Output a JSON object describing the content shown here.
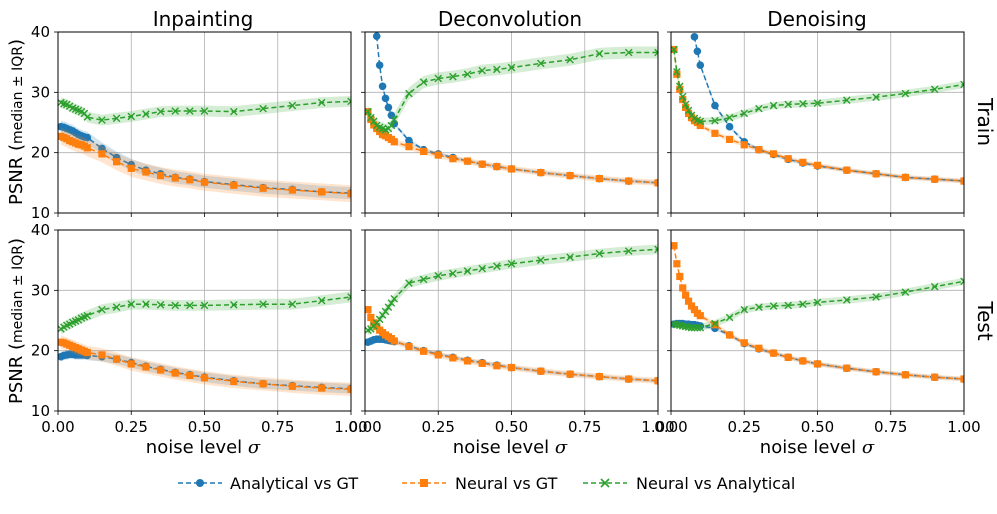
{
  "chart_data": {
    "type": "line",
    "columns": [
      "Inpainting",
      "Deconvolution",
      "Denoising"
    ],
    "rows": [
      "Train",
      "Test"
    ],
    "ylabel_main": "PSNR (",
    "ylabel_small": "median ± IQR",
    "ylabel_close": ")",
    "xlabel_text": "noise level ",
    "xlabel_symbol": "σ",
    "xlim": [
      0.0,
      1.0
    ],
    "ylim": [
      10,
      40
    ],
    "x_ticks": [
      "0.00",
      "0.25",
      "0.50",
      "0.75",
      "1.00"
    ],
    "y_ticks": [
      "10",
      "20",
      "30",
      "40"
    ],
    "grid": true,
    "legend_position": "bottom-center",
    "series_meta": [
      {
        "name": "Analytical vs GT",
        "color": "#1f77b4",
        "marker": "circle"
      },
      {
        "name": "Neural vs GT",
        "color": "#ff7f0e",
        "marker": "square"
      },
      {
        "name": "Neural vs Analytical",
        "color": "#2ca02c",
        "marker": "x"
      }
    ],
    "x": [
      0.01,
      0.02,
      0.03,
      0.04,
      0.05,
      0.06,
      0.07,
      0.08,
      0.09,
      0.1,
      0.15,
      0.2,
      0.25,
      0.3,
      0.35,
      0.4,
      0.45,
      0.5,
      0.6,
      0.7,
      0.8,
      0.9,
      1.0
    ],
    "panels": [
      {
        "row": "Train",
        "column": "Inpainting",
        "series": [
          {
            "name": "Analytical vs GT",
            "values": [
              24.3,
              24.2,
              24.0,
              23.8,
              23.6,
              23.3,
              23.0,
              22.8,
              22.6,
              22.5,
              20.7,
              19.2,
              18.0,
              17.1,
              16.5,
              15.9,
              15.6,
              15.2,
              14.7,
              14.2,
              13.9,
              13.5,
              13.3
            ],
            "spread": 1.0
          },
          {
            "name": "Neural vs GT",
            "values": [
              22.7,
              22.5,
              22.3,
              22.0,
              21.8,
              21.6,
              21.4,
              21.3,
              21.1,
              20.8,
              19.8,
              18.5,
              17.4,
              16.8,
              16.2,
              15.8,
              15.5,
              15.1,
              14.6,
              14.1,
              13.8,
              13.5,
              13.2
            ],
            "spread": 1.4
          },
          {
            "name": "Neural vs Analytical",
            "values": [
              28.3,
              28.1,
              28.0,
              27.7,
              27.4,
              27.2,
              27.0,
              26.8,
              26.5,
              25.9,
              25.4,
              25.7,
              26.0,
              26.4,
              26.8,
              26.9,
              26.9,
              26.9,
              26.8,
              27.3,
              27.8,
              28.3,
              28.5
            ],
            "spread": 0.9
          }
        ]
      },
      {
        "row": "Train",
        "column": "Deconvolution",
        "series": [
          {
            "name": "Analytical vs GT",
            "values": [
              null,
              null,
              null,
              39.3,
              34.5,
              31.0,
              29.0,
              27.5,
              26.2,
              24.8,
              22.0,
              20.5,
              19.8,
              19.2,
              18.6,
              18.1,
              17.7,
              17.3,
              16.7,
              16.2,
              15.7,
              15.3,
              15.0
            ],
            "spread": 0.3
          },
          {
            "name": "Neural vs GT",
            "values": [
              26.8,
              25.5,
              24.6,
              24.0,
              23.5,
              23.0,
              22.8,
              22.5,
              22.2,
              21.8,
              21.0,
              20.2,
              19.6,
              19.0,
              18.6,
              18.1,
              17.7,
              17.3,
              16.7,
              16.2,
              15.7,
              15.3,
              15.0
            ],
            "spread": 0.5
          },
          {
            "name": "Neural vs Analytical",
            "values": [
              26.8,
              25.8,
              25.2,
              24.5,
              24.2,
              24.0,
              23.8,
              24.0,
              24.5,
              25.5,
              29.8,
              31.7,
              32.3,
              32.6,
              33.0,
              33.6,
              33.8,
              34.1,
              34.8,
              35.4,
              36.4,
              36.6,
              36.6
            ],
            "spread": 1.0
          }
        ]
      },
      {
        "row": "Train",
        "column": "Denoising",
        "series": [
          {
            "name": "Analytical vs GT",
            "values": [
              null,
              null,
              null,
              null,
              null,
              null,
              null,
              39.2,
              36.8,
              34.5,
              27.8,
              24.3,
              21.8,
              20.5,
              19.7,
              18.9,
              18.3,
              17.8,
              17.1,
              16.5,
              15.9,
              15.6,
              15.3
            ],
            "spread": 0.3
          },
          {
            "name": "Neural vs GT",
            "values": [
              37.1,
              33.0,
              30.5,
              28.8,
              27.5,
              26.5,
              25.8,
              25.3,
              25.0,
              24.5,
              23.2,
              22.2,
              21.3,
              20.5,
              19.8,
              19.0,
              18.4,
              17.9,
              17.1,
              16.5,
              15.9,
              15.6,
              15.3
            ],
            "spread": 0.4
          },
          {
            "name": "Neural vs Analytical",
            "values": [
              37.1,
              33.4,
              31.0,
              29.3,
              28.0,
              27.0,
              26.2,
              25.7,
              25.4,
              25.2,
              25.3,
              25.8,
              26.5,
              27.3,
              27.8,
              28.0,
              28.1,
              28.2,
              28.7,
              29.2,
              29.8,
              30.5,
              31.3
            ],
            "spread": 0.6
          }
        ]
      },
      {
        "row": "Test",
        "column": "Inpainting",
        "series": [
          {
            "name": "Analytical vs GT",
            "values": [
              19.0,
              19.2,
              19.3,
              19.4,
              19.4,
              19.3,
              19.3,
              19.3,
              19.3,
              19.2,
              19.0,
              18.6,
              18.0,
              17.4,
              16.9,
              16.4,
              16.0,
              15.6,
              15.0,
              14.5,
              14.2,
              13.9,
              13.7
            ],
            "spread": 0.8
          },
          {
            "name": "Neural vs GT",
            "values": [
              21.4,
              21.3,
              21.1,
              20.9,
              20.7,
              20.5,
              20.3,
              20.1,
              19.9,
              19.7,
              19.3,
              18.6,
              17.8,
              17.3,
              16.8,
              16.3,
              15.9,
              15.5,
              14.9,
              14.5,
              14.1,
              13.8,
              13.6
            ],
            "spread": 1.1
          },
          {
            "name": "Neural vs Analytical",
            "values": [
              23.6,
              23.9,
              24.2,
              24.4,
              24.7,
              24.9,
              25.1,
              25.4,
              25.6,
              25.8,
              26.8,
              27.2,
              27.7,
              27.7,
              27.6,
              27.5,
              27.5,
              27.5,
              27.6,
              27.7,
              27.7,
              28.3,
              28.9
            ],
            "spread": 0.9
          }
        ]
      },
      {
        "row": "Test",
        "column": "Deconvolution",
        "series": [
          {
            "name": "Analytical vs GT",
            "values": [
              21.4,
              21.6,
              21.8,
              21.9,
              21.9,
              21.9,
              21.8,
              21.7,
              21.6,
              21.5,
              20.8,
              20.0,
              19.4,
              18.9,
              18.4,
              18.0,
              17.6,
              17.2,
              16.6,
              16.1,
              15.7,
              15.3,
              15.0
            ],
            "spread": 0.3
          },
          {
            "name": "Neural vs GT",
            "values": [
              26.8,
              25.5,
              24.6,
              24.0,
              23.4,
              23.0,
              22.6,
              22.3,
              22.0,
              21.6,
              20.7,
              19.9,
              19.3,
              18.8,
              18.3,
              17.9,
              17.5,
              17.2,
              16.6,
              16.1,
              15.7,
              15.3,
              15.0
            ],
            "spread": 0.5
          },
          {
            "name": "Neural vs Analytical",
            "values": [
              23.4,
              23.6,
              24.1,
              24.6,
              25.2,
              25.9,
              26.5,
              27.2,
              27.9,
              28.6,
              31.2,
              31.8,
              32.4,
              32.8,
              33.2,
              33.6,
              34.0,
              34.4,
              35.0,
              35.5,
              36.1,
              36.5,
              36.8
            ],
            "spread": 0.8
          }
        ]
      },
      {
        "row": "Test",
        "column": "Denoising",
        "series": [
          {
            "name": "Analytical vs GT",
            "values": [
              24.4,
              24.5,
              24.5,
              24.5,
              24.4,
              24.4,
              24.3,
              24.3,
              24.2,
              24.1,
              23.7,
              22.6,
              21.2,
              20.3,
              19.6,
              18.9,
              18.3,
              17.8,
              17.1,
              16.5,
              16.0,
              15.6,
              15.3
            ],
            "spread": 0.3
          },
          {
            "name": "Neural vs GT",
            "values": [
              37.4,
              34.4,
              32.3,
              30.4,
              29.2,
              28.2,
              27.4,
              26.8,
              26.2,
              25.8,
              24.3,
              22.6,
              21.3,
              20.4,
              19.6,
              18.9,
              18.3,
              17.8,
              17.1,
              16.5,
              16.0,
              15.6,
              15.3
            ],
            "spread": 0.4
          },
          {
            "name": "Neural vs Analytical",
            "values": [
              24.4,
              24.3,
              24.2,
              24.1,
              24.0,
              23.9,
              23.8,
              23.8,
              23.8,
              23.8,
              24.5,
              25.5,
              26.8,
              27.2,
              27.4,
              27.5,
              27.7,
              28.0,
              28.4,
              28.9,
              29.7,
              30.6,
              31.5
            ],
            "spread": 0.6
          }
        ]
      }
    ]
  }
}
